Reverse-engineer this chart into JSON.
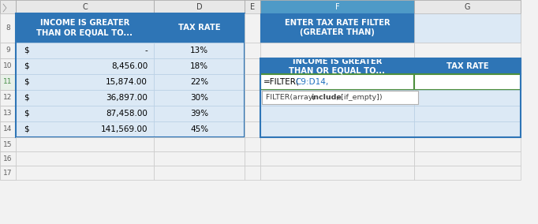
{
  "bg_color": "#f2f2f2",
  "header_bg": "#2e75b6",
  "header_text_color": "#ffffff",
  "data_bg": "#dce9f5",
  "white": "#ffffff",
  "border_dark": "#2e75b6",
  "border_light": "#b8cfe4",
  "grid_color": "#c8c8c8",
  "col_header_bg": "#e8e8e8",
  "col_header_selected_bg": "#4e9ac7",
  "col_header_selected_text": "#ffffff",
  "row_num_bg": "#f2f2f2",
  "row_num_selected_bg": "#e8f0e8",
  "row_num_selected_text": "#4a8f4a",
  "left_header_col1": "INCOME IS GREATER\nTHAN OR EQUAL TO...",
  "left_header_col2": "TAX RATE",
  "left_rows": [
    [
      "-",
      "13%"
    ],
    [
      "8,456.00",
      "18%"
    ],
    [
      "15,874.00",
      "22%"
    ],
    [
      "36,897.00",
      "30%"
    ],
    [
      "87,458.00",
      "39%"
    ],
    [
      "141,569.00",
      "45%"
    ]
  ],
  "right_top_text": "ENTER TAX RATE FILTER\n(GREATER THAN)",
  "right_header_col1": "INCOME IS GREATER\nTHAN OR EQUAL TO...",
  "right_header_col2": "TAX RATE",
  "formula_black": "=FILTER(",
  "formula_blue": "C9:D14,",
  "formula_blue_color": "#1f6fbf",
  "formula_cell_border": "#4e8f3e",
  "tooltip_prefix": "FILTER(array, ",
  "tooltip_bold": "include",
  "tooltip_suffix": ", [if_empty])",
  "tooltip_color": "#404040",
  "tooltip_bg": "#ffffff",
  "tooltip_border": "#b0b0b0"
}
